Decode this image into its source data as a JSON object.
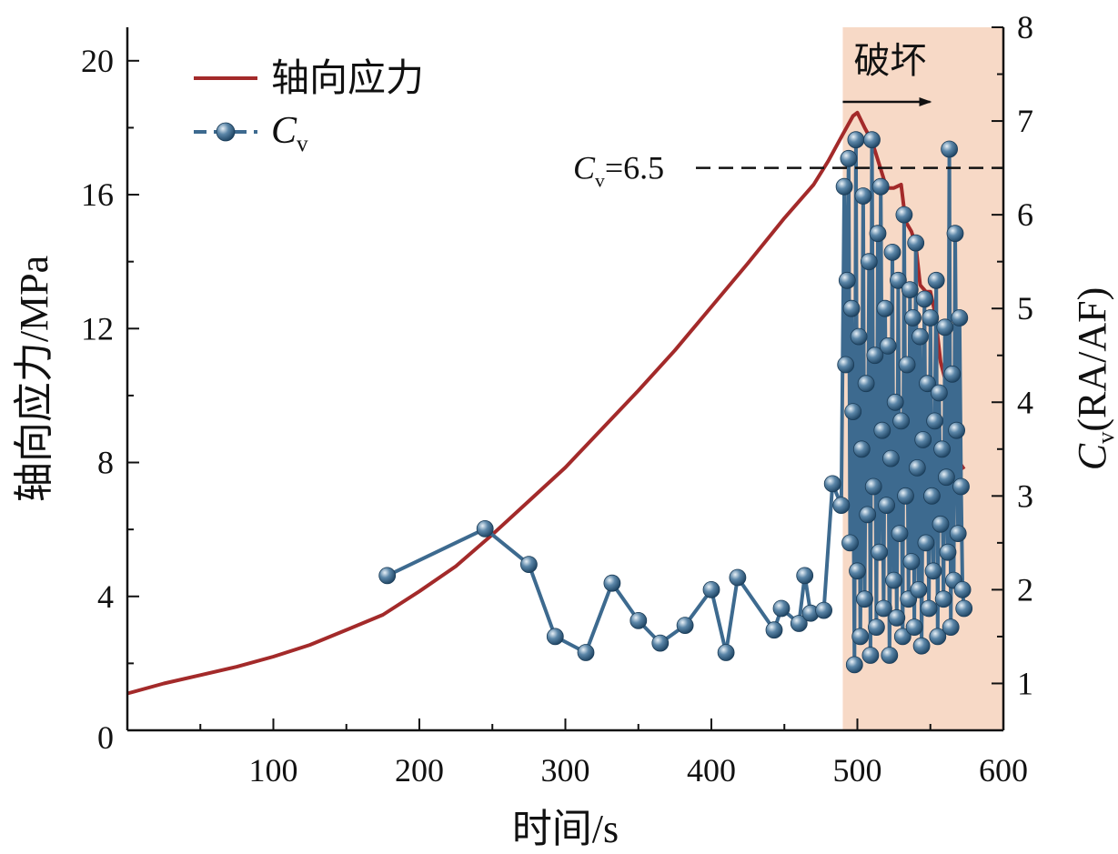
{
  "chart_data": {
    "type": "line",
    "xlabel": "时间/s",
    "ylabel_left": "轴向应力/MPa",
    "ylabel_right_symbol": "C",
    "ylabel_right_sub": "v",
    "ylabel_right_rest": "(RA/AF)",
    "xlim": [
      0,
      600
    ],
    "ylim_left": [
      0,
      21
    ],
    "ylim_right": [
      0.5,
      8
    ],
    "x_ticks": [
      100,
      200,
      300,
      400,
      500,
      600
    ],
    "x_tick_labels": [
      "100",
      "200",
      "300",
      "400",
      "500",
      "600"
    ],
    "y_left_ticks": [
      0,
      4,
      8,
      12,
      16,
      20
    ],
    "y_left_tick_labels": [
      "0",
      "4",
      "8",
      "12",
      "16",
      "20"
    ],
    "y_right_ticks": [
      1,
      2,
      3,
      4,
      5,
      6,
      7,
      8
    ],
    "y_right_tick_labels": [
      "1",
      "2",
      "3",
      "4",
      "5",
      "6",
      "7",
      "8"
    ],
    "failure_region": {
      "x_start": 490,
      "x_end": 600,
      "label": "破坏",
      "color": "#f7d9c6"
    },
    "threshold": {
      "symbol": "C",
      "sub": "v",
      "text": "=6.5",
      "value": 6.5
    },
    "legend": [
      {
        "name": "轴向应力",
        "color": "#a32a2a",
        "style": "line"
      },
      {
        "symbol": "C",
        "sub": "v",
        "color": "#3d6a8f",
        "style": "line-marker"
      }
    ],
    "series": [
      {
        "name": "轴向应力",
        "axis": "left",
        "color": "#a32a2a",
        "x": [
          0,
          25,
          50,
          75,
          100,
          125,
          150,
          175,
          200,
          225,
          250,
          275,
          300,
          325,
          350,
          375,
          400,
          425,
          450,
          470,
          480,
          490,
          497,
          500,
          505,
          510,
          515,
          520,
          525,
          530,
          533,
          537,
          540,
          543,
          547,
          550,
          553,
          557,
          560,
          565,
          570,
          573
        ],
        "y": [
          1.1,
          1.4,
          1.65,
          1.9,
          2.2,
          2.55,
          3.0,
          3.45,
          4.15,
          4.9,
          5.85,
          6.85,
          7.85,
          9.0,
          10.15,
          11.35,
          12.65,
          13.95,
          15.3,
          16.3,
          17.0,
          17.8,
          18.35,
          18.45,
          18.0,
          17.6,
          16.9,
          16.2,
          16.2,
          16.3,
          15.2,
          14.9,
          14.5,
          13.3,
          13.1,
          13.1,
          12.5,
          11.0,
          10.5,
          9.1,
          8.0,
          7.8
        ]
      },
      {
        "name": "Cv",
        "axis": "right",
        "color": "#3d6a8f",
        "x": [
          178,
          245,
          275,
          293,
          314,
          332,
          350,
          365,
          382,
          400,
          410,
          418,
          443,
          448,
          460,
          464,
          468,
          477,
          483,
          489,
          491,
          492,
          493,
          494,
          495,
          496,
          497,
          498,
          499,
          500,
          501,
          502,
          503,
          504,
          505,
          506,
          507,
          508,
          509,
          510,
          511,
          512,
          513,
          514,
          515,
          516,
          517,
          518,
          519,
          520,
          521,
          522,
          523,
          524,
          525,
          526,
          527,
          528,
          529,
          530,
          531,
          532,
          533,
          534,
          535,
          536,
          537,
          538,
          539,
          540,
          541,
          542,
          543,
          544,
          545,
          546,
          547,
          548,
          549,
          550,
          551,
          552,
          553,
          554,
          555,
          556,
          557,
          558,
          559,
          560,
          561,
          562,
          563,
          564,
          565,
          566,
          567,
          568,
          569,
          570,
          571,
          572,
          573
        ],
        "y": [
          2.15,
          2.65,
          2.27,
          1.5,
          1.33,
          2.07,
          1.67,
          1.43,
          1.62,
          2.0,
          1.33,
          2.13,
          1.57,
          1.8,
          1.64,
          2.15,
          1.75,
          1.78,
          3.13,
          2.9,
          6.3,
          4.4,
          5.3,
          6.6,
          2.5,
          5.0,
          3.9,
          1.2,
          6.8,
          2.2,
          4.7,
          1.5,
          3.5,
          6.2,
          1.9,
          4.2,
          2.8,
          5.5,
          1.3,
          6.8,
          3.1,
          4.5,
          1.6,
          5.8,
          2.4,
          6.3,
          3.7,
          1.8,
          5.0,
          2.9,
          4.6,
          1.3,
          3.4,
          5.6,
          2.1,
          4.0,
          1.7,
          5.3,
          2.6,
          3.8,
          1.5,
          6.0,
          3.0,
          4.4,
          1.9,
          5.2,
          2.3,
          4.9,
          1.6,
          5.7,
          3.3,
          2.0,
          4.7,
          1.4,
          3.6,
          5.1,
          2.5,
          4.2,
          1.8,
          4.9,
          3.0,
          2.2,
          3.8,
          5.3,
          1.5,
          4.1,
          2.7,
          3.5,
          1.9,
          4.8,
          3.2,
          2.4,
          6.7,
          1.6,
          4.3,
          2.1,
          5.8,
          3.7,
          2.6,
          4.9,
          3.1,
          2.0,
          1.8
        ]
      }
    ]
  }
}
